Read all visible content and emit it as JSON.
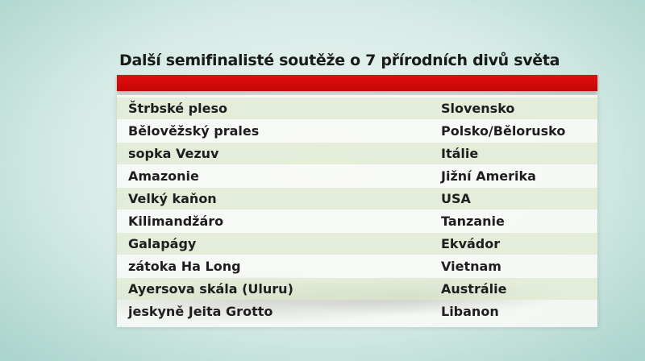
{
  "title": "Další semifinalisté soutěže o 7 přírodních divů světa",
  "colors": {
    "accent_bar": "#d80a0a"
  },
  "rows": [
    {
      "place": "Štrbské pleso",
      "country": "Slovensko"
    },
    {
      "place": "Bělověžský prales",
      "country": "Polsko/Bělorusko"
    },
    {
      "place": "sopka Vezuv",
      "country": "Itálie"
    },
    {
      "place": "Amazonie",
      "country": "Jižní Amerika"
    },
    {
      "place": "Velký kaňon",
      "country": "USA"
    },
    {
      "place": "Kilimandžáro",
      "country": "Tanzanie"
    },
    {
      "place": "Galapágy",
      "country": "Ekvádor"
    },
    {
      "place": "zátoka Ha Long",
      "country": "Vietnam"
    },
    {
      "place": "Ayersova skála (Uluru)",
      "country": "Austrálie"
    },
    {
      "place": "jeskyně Jeita Grotto",
      "country": "Libanon"
    }
  ]
}
